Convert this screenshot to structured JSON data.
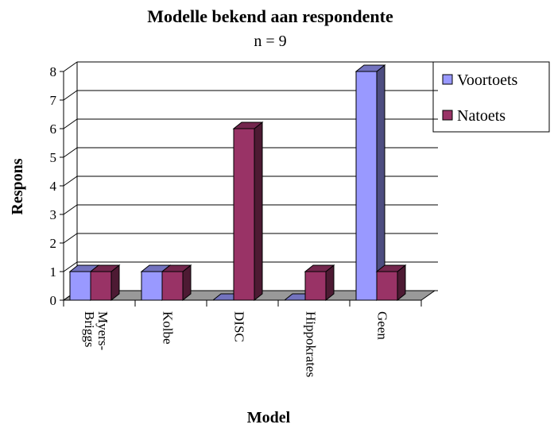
{
  "chart_data": {
    "type": "bar3d",
    "title": "Modelle bekend aan respondente",
    "subtitle": "n = 9",
    "x_label": "Model",
    "y_label": "Respons",
    "categories": [
      "Myers-\nBriggs",
      "Kolbe",
      "DISC",
      "Hippokrates",
      "Geen"
    ],
    "series": [
      {
        "name": "Voortoets",
        "color": "#9999ff",
        "values": [
          1,
          1,
          0,
          0,
          8
        ]
      },
      {
        "name": "Natoets",
        "color": "#993366",
        "values": [
          1,
          1,
          6,
          1,
          1
        ]
      }
    ],
    "ylim": [
      0,
      8
    ],
    "yticks": [
      0,
      1,
      2,
      3,
      4,
      5,
      6,
      7,
      8
    ],
    "grid": true,
    "legend": "right"
  }
}
